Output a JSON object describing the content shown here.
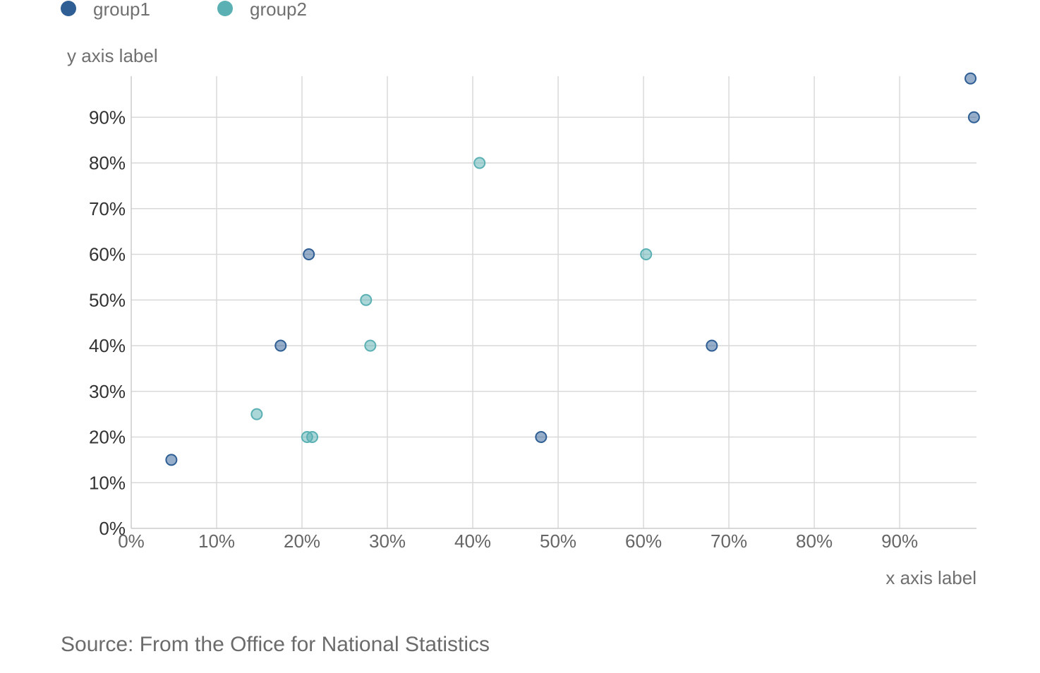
{
  "chart_data": {
    "type": "scatter",
    "xlabel": "x axis label",
    "ylabel": "y axis label",
    "xlim": [
      0,
      0.99
    ],
    "ylim": [
      0,
      0.99
    ],
    "x_ticks": [
      "0%",
      "10%",
      "20%",
      "30%",
      "40%",
      "50%",
      "60%",
      "70%",
      "80%",
      "90%"
    ],
    "y_ticks": [
      "0%",
      "10%",
      "20%",
      "30%",
      "40%",
      "50%",
      "60%",
      "70%",
      "80%",
      "90%"
    ],
    "grid": true,
    "legend_position": "top-left",
    "source": "Source: From the Office for National Statistics",
    "series": [
      {
        "name": "group1",
        "color": "#2e5e94",
        "points": [
          {
            "x": 0.047,
            "y": 0.15
          },
          {
            "x": 0.175,
            "y": 0.4
          },
          {
            "x": 0.208,
            "y": 0.6
          },
          {
            "x": 0.48,
            "y": 0.2
          },
          {
            "x": 0.68,
            "y": 0.4
          },
          {
            "x": 0.983,
            "y": 0.985
          },
          {
            "x": 0.987,
            "y": 0.9
          }
        ]
      },
      {
        "name": "group2",
        "color": "#5ab0b3",
        "points": [
          {
            "x": 0.147,
            "y": 0.25
          },
          {
            "x": 0.206,
            "y": 0.2
          },
          {
            "x": 0.212,
            "y": 0.2
          },
          {
            "x": 0.275,
            "y": 0.5
          },
          {
            "x": 0.28,
            "y": 0.4
          },
          {
            "x": 0.408,
            "y": 0.8
          },
          {
            "x": 0.603,
            "y": 0.6
          }
        ]
      }
    ]
  }
}
